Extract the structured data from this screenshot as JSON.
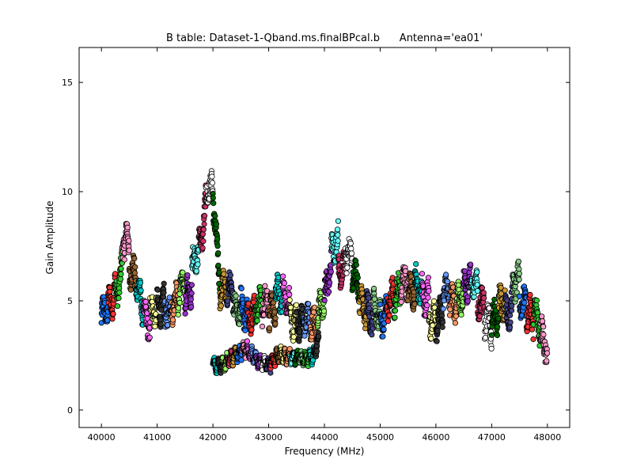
{
  "chart_data": {
    "type": "scatter",
    "title": "B table: Dataset-1-Qband.ms.finalBPcal.b      Antenna='ea01'",
    "xlabel": "Frequency (MHz)",
    "ylabel": "Gain Amplitude",
    "xlim": [
      39600,
      48400
    ],
    "ylim": [
      -0.8,
      16.6
    ],
    "xticks": [
      40000,
      41000,
      42000,
      43000,
      44000,
      45000,
      46000,
      47000,
      48000
    ],
    "xtick_labels": [
      "40000",
      "41000",
      "42000",
      "43000",
      "44000",
      "45000",
      "46000",
      "47000",
      "48000"
    ],
    "yticks": [
      0,
      5,
      10,
      15
    ],
    "ytick_labels": [
      "0",
      "5",
      "10",
      "15"
    ],
    "grid": false,
    "legend": "none",
    "marker": "circle",
    "profile": {
      "x": [
        40000,
        40100,
        40200,
        40300,
        40400,
        40450,
        40500,
        40600,
        40700,
        40800,
        40900,
        41000,
        41100,
        41200,
        41300,
        41400,
        41500,
        41600,
        41700,
        41800,
        41850,
        41900,
        41950,
        42000,
        42050,
        42100,
        42300,
        42500,
        42700,
        42900,
        43000,
        43200,
        43400,
        43600,
        43800,
        43900,
        44000,
        44100,
        44200,
        44300,
        44400,
        44500,
        44600,
        44700,
        44800,
        44900,
        45000,
        45200,
        45400,
        45600,
        45800,
        46000,
        46200,
        46400,
        46600,
        46800,
        47000,
        47200,
        47400,
        47600,
        47800,
        48000
      ],
      "y": [
        4.0,
        4.6,
        5.2,
        6.3,
        7.4,
        7.8,
        6.5,
        6.0,
        5.0,
        4.3,
        4.1,
        4.4,
        4.7,
        4.6,
        4.4,
        4.8,
        5.2,
        5.8,
        6.8,
        7.5,
        8.5,
        9.5,
        9.8,
        9.0,
        8.0,
        5.3,
        4.9,
        5.3,
        4.8,
        4.6,
        4.9,
        5.2,
        4.6,
        4.0,
        3.8,
        4.1,
        5.0,
        6.5,
        7.3,
        7.1,
        6.7,
        6.5,
        5.8,
        5.2,
        4.7,
        4.4,
        4.2,
        4.7,
        5.2,
        5.6,
        4.8,
        4.6,
        4.9,
        5.1,
        5.4,
        4.9,
        4.2,
        4.6,
        5.4,
        5.2,
        4.3,
        3.4
      ],
      "scatter": 1.0
    },
    "lower_band": {
      "x": [
        42000,
        42200,
        42400,
        42600,
        42800,
        43000,
        43200,
        43400,
        43600,
        43800,
        43900
      ],
      "y": [
        2.0,
        2.1,
        2.5,
        2.8,
        2.3,
        2.0,
        2.6,
        2.4,
        2.3,
        2.5,
        3.2
      ],
      "scatter": 0.35
    },
    "colors": [
      "#1f77ff",
      "#ff3333",
      "#33cc33",
      "#ff99cc",
      "#996633",
      "#00cccc",
      "#ff66ff",
      "#ffff99",
      "#333333",
      "#6699ff",
      "#ff9966",
      "#99ff66",
      "#9933cc",
      "#66ffff",
      "#cc3366",
      "#ffffff",
      "#006600",
      "#cc9933",
      "#444488",
      "#88cc88"
    ]
  }
}
